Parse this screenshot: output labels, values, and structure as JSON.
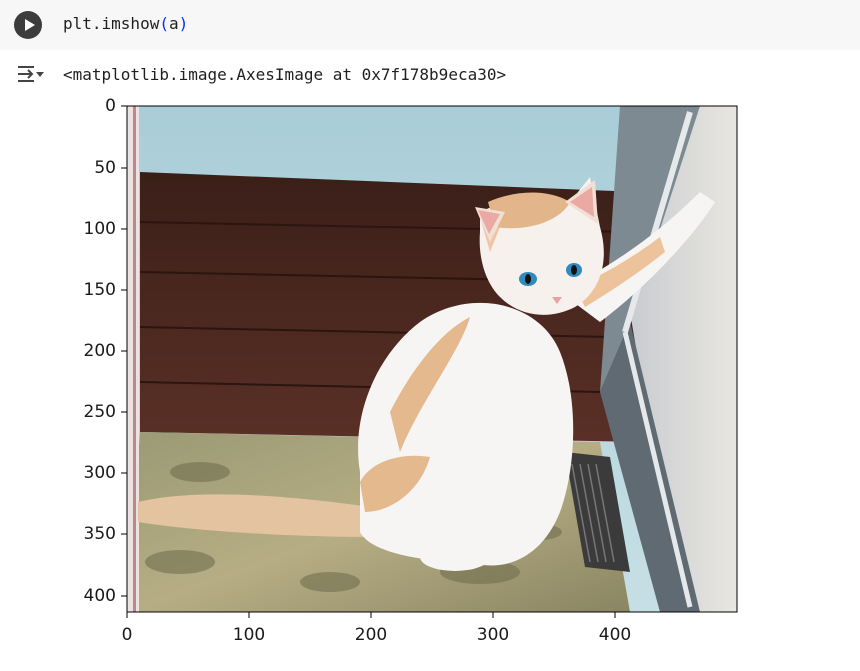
{
  "cell": {
    "code_fn": "plt.imshow",
    "code_open": "(",
    "code_arg": "a",
    "code_close": ")"
  },
  "output": {
    "text": "<matplotlib.image.AxesImage at 0x7f178b9eca30>"
  },
  "icons": {
    "run": "play-icon",
    "output_menu": "output-toggle-icon"
  },
  "chart_data": {
    "type": "image",
    "image_description": "A photograph of an orange-and-white kitten on a patterned rug, standing up with a front paw against a wall beside a wood-paneled corner.",
    "xlim": [
      0,
      500
    ],
    "ylim": [
      413,
      0
    ],
    "xticks": [
      "0",
      "100",
      "200",
      "300",
      "400"
    ],
    "yticks": [
      "0",
      "50",
      "100",
      "150",
      "200",
      "250",
      "300",
      "350",
      "400"
    ],
    "xtick_values": [
      0,
      100,
      200,
      300,
      400
    ],
    "ytick_values": [
      0,
      50,
      100,
      150,
      200,
      250,
      300,
      350,
      400
    ]
  }
}
